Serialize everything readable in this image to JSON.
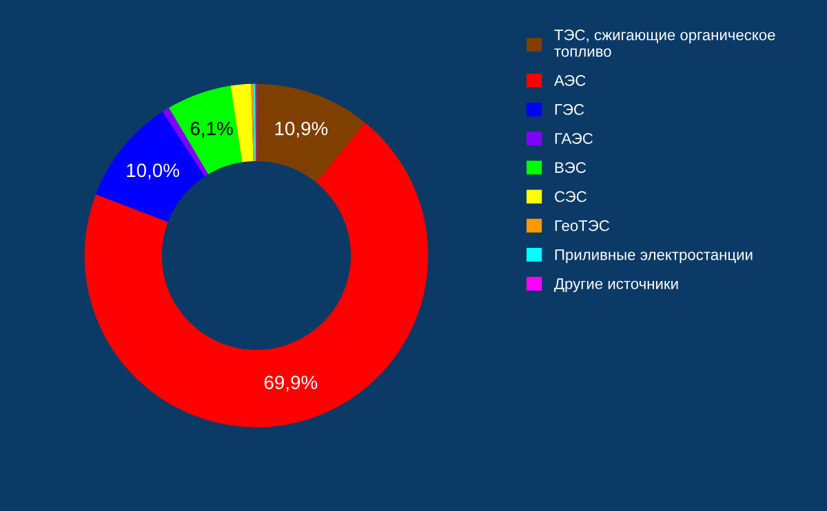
{
  "chart_data": {
    "type": "donut",
    "categories": [
      "ТЭС, сжигающие органическое топливо",
      "АЭС",
      "ГЭС",
      "ГАЭС",
      "ВЭС",
      "СЭС",
      "ГеоТЭС",
      "Приливные электростанции",
      "Другие источники"
    ],
    "values": [
      10.9,
      69.9,
      10.0,
      0.7,
      6.1,
      1.9,
      0.2,
      0.2,
      0.1
    ],
    "colors": [
      "#7f3f00",
      "#ff0000",
      "#0000ff",
      "#8000ff",
      "#00ff00",
      "#ffff00",
      "#ff9900",
      "#00ffff",
      "#ff00ff"
    ],
    "value_labels": [
      "10,9%",
      "69,9%",
      "10,0%",
      null,
      "6,1%",
      null,
      null,
      null,
      null
    ],
    "legend": "right"
  }
}
